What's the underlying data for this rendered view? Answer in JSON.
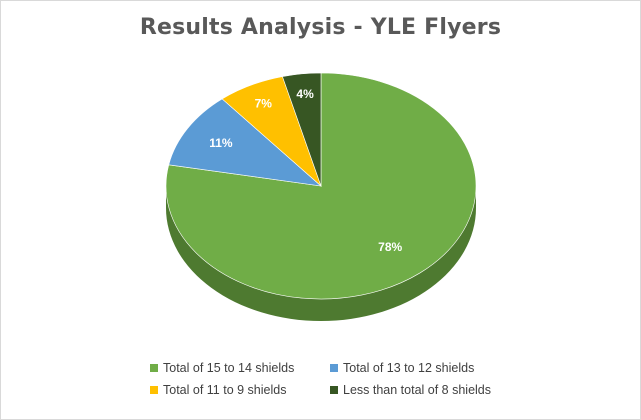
{
  "chart_data": {
    "type": "pie",
    "title": "Results Analysis - YLE Flyers",
    "is_3d": true,
    "categories": [
      "Total of 15 to 14 shields",
      "Total of 13 to 12 shields",
      "Total of 11 to 9 shields",
      "Less than total of 8 shields"
    ],
    "values": [
      78,
      11,
      7,
      4
    ],
    "data_labels": [
      "78%",
      "11%",
      "7%",
      "4%"
    ],
    "colors": [
      "#70ad47",
      "#5b9bd5",
      "#ffc000",
      "#375623"
    ],
    "side_colors": [
      "#4e7a30",
      "#3f6f9c",
      "#c49300",
      "#25391a"
    ],
    "legend_position": "bottom"
  }
}
